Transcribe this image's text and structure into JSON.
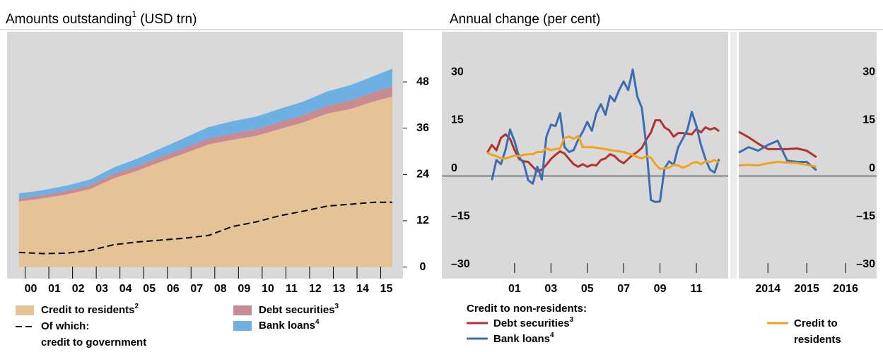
{
  "chart_data": [
    {
      "type": "area",
      "title": "Amounts outstanding",
      "title_note": "1",
      "title_suffix": "(USD trn)",
      "x": [
        2000,
        2001,
        2002,
        2003,
        2004,
        2005,
        2006,
        2007,
        2008,
        2009,
        2010,
        2011,
        2012,
        2013,
        2014,
        2015,
        2015.75
      ],
      "series": [
        {
          "name": "Credit to residents",
          "note": "2",
          "color": "#e6c396",
          "stacked": true,
          "values": [
            17,
            17.8,
            18.8,
            20.2,
            23,
            25,
            27.3,
            29.5,
            31.8,
            33,
            34,
            35.8,
            37.5,
            39.8,
            41,
            43,
            44.2
          ]
        },
        {
          "name": "Debt securities",
          "note": "3",
          "color": "#c98a92",
          "stacked": true,
          "values": [
            0.8,
            0.8,
            0.9,
            1.0,
            1.1,
            1.2,
            1.3,
            1.4,
            1.5,
            1.6,
            1.7,
            1.8,
            1.9,
            2.0,
            2.2,
            2.4,
            2.6
          ]
        },
        {
          "name": "Bank loans",
          "note": "4",
          "color": "#6cb0e4",
          "stacked": true,
          "values": [
            1.3,
            1.3,
            1.4,
            1.5,
            1.7,
            1.9,
            2.2,
            2.6,
            3.0,
            3.2,
            3.3,
            3.4,
            3.5,
            3.7,
            4.0,
            4.2,
            4.6
          ]
        },
        {
          "name_lines": [
            "Of which:",
            "credit to government"
          ],
          "color": "#000000",
          "stacked": false,
          "dashed": true,
          "values": [
            3.8,
            3.5,
            3.6,
            4.3,
            5.8,
            6.5,
            7.0,
            7.5,
            8.2,
            10.5,
            11.7,
            13.3,
            14.5,
            15.8,
            16.3,
            16.8,
            16.8
          ]
        }
      ],
      "xlim": [
        1999.5,
        2016.2
      ],
      "xticks": [
        {
          "value": 2000.5,
          "label": "00"
        },
        {
          "value": 2001.5,
          "label": "01"
        },
        {
          "value": 2002.5,
          "label": "02"
        },
        {
          "value": 2003.5,
          "label": "03"
        },
        {
          "value": 2004.5,
          "label": "04"
        },
        {
          "value": 2005.5,
          "label": "05"
        },
        {
          "value": 2006.5,
          "label": "06"
        },
        {
          "value": 2007.5,
          "label": "07"
        },
        {
          "value": 2008.5,
          "label": "08"
        },
        {
          "value": 2009.5,
          "label": "09"
        },
        {
          "value": 2010.5,
          "label": "10"
        },
        {
          "value": 2011.5,
          "label": "11"
        },
        {
          "value": 2012.5,
          "label": "12"
        },
        {
          "value": 2013.5,
          "label": "13"
        },
        {
          "value": 2014.5,
          "label": "14"
        },
        {
          "value": 2015.5,
          "label": "15"
        }
      ],
      "ylim": [
        -3,
        61
      ],
      "yticks": [
        0,
        12,
        24,
        36,
        48
      ]
    },
    {
      "type": "line",
      "title": "Annual change (per cent)",
      "legend_title": "Credit to non-residents:",
      "panels": [
        {
          "xlim": [
            1997.5,
            2013.25
          ],
          "xticks": [
            {
              "value": 2001.5,
              "label": "01"
            },
            {
              "value": 2003.5,
              "label": "03"
            },
            {
              "value": 2005.5,
              "label": "05"
            },
            {
              "value": 2007.5,
              "label": "07"
            },
            {
              "value": 2009.5,
              "label": "09"
            },
            {
              "value": 2011.5,
              "label": "11"
            }
          ]
        },
        {
          "xlim": [
            2013.75,
            2017.3
          ],
          "xticks": [
            {
              "value": 2014.5,
              "label": "2014"
            },
            {
              "value": 2015.5,
              "label": "2015"
            },
            {
              "value": 2016.5,
              "label": "2016"
            }
          ]
        }
      ],
      "ylim": [
        -32,
        45
      ],
      "yticks": [
        {
          "value": -30,
          "label": "–30"
        },
        {
          "value": -15,
          "label": "–15"
        },
        0,
        15,
        30
      ],
      "zero_line": true,
      "x": [
        2000,
        2000.25,
        2000.5,
        2000.75,
        2001,
        2001.25,
        2001.5,
        2001.75,
        2002,
        2002.25,
        2002.5,
        2002.75,
        2003,
        2003.25,
        2003.5,
        2003.75,
        2004,
        2004.25,
        2004.5,
        2004.75,
        2005,
        2005.25,
        2005.5,
        2005.75,
        2006,
        2006.25,
        2006.5,
        2006.75,
        2007,
        2007.25,
        2007.5,
        2007.75,
        2008,
        2008.25,
        2008.5,
        2008.75,
        2009,
        2009.25,
        2009.5,
        2009.75,
        2010,
        2010.25,
        2010.5,
        2010.75,
        2011,
        2011.25,
        2011.5,
        2011.75,
        2012,
        2012.25,
        2012.5,
        2012.75,
        2013.75,
        2014,
        2014.25,
        2014.5,
        2014.75,
        2015,
        2015.25,
        2015.5,
        2015.75
      ],
      "series": [
        {
          "name": "Debt securities",
          "note": "3",
          "color": "#b3312e",
          "values": [
            7.3,
            9.7,
            8,
            11.9,
            13,
            11.6,
            8.1,
            5.3,
            4.6,
            4.4,
            2.9,
            1.5,
            2,
            3.5,
            5.3,
            6.6,
            7.7,
            7,
            5.3,
            3.7,
            2.9,
            3.7,
            2.9,
            3.5,
            3.3,
            5,
            5.5,
            6.8,
            6.2,
            4.8,
            4,
            5.3,
            6.6,
            7.5,
            8.8,
            11.4,
            13.6,
            17.4,
            17.4,
            15.2,
            14.3,
            12.3,
            13.4,
            13.4,
            13.2,
            13,
            14.7,
            13.6,
            15.2,
            14.5,
            15,
            14,
            13.8,
            12.1,
            10.1,
            8.4,
            8.4,
            8.4,
            8.6,
            7.9,
            5.9
          ]
        },
        {
          "name": "Bank loans",
          "note": "4",
          "color": "#3b6db4",
          "values": [
            null,
            -1.3,
            5,
            3.7,
            8.1,
            14.5,
            10.8,
            5.9,
            4,
            -1.3,
            -2.4,
            2.9,
            -1.1,
            12.3,
            16,
            15.6,
            19.6,
            9,
            7.5,
            8.1,
            11.4,
            13.8,
            16.9,
            14.1,
            19.6,
            22.4,
            19.1,
            25,
            23.3,
            26.8,
            29.5,
            26.8,
            33.2,
            24.8,
            21.3,
            9.2,
            -7.5,
            -8.1,
            -7.9,
            2.4,
            4.6,
            3.5,
            9,
            11.6,
            14.3,
            20,
            15.6,
            9.7,
            5.3,
            2,
            1.1,
            5.3,
            7.3,
            9,
            7.9,
            9.7,
            11,
            4.8,
            4.4,
            4.4,
            1.8
          ]
        },
        {
          "name_lines": [
            "Credit to",
            "residents"
          ],
          "color": "#f0a21e",
          "values": [
            7.3,
            6.6,
            6.2,
            5.5,
            5.5,
            5.9,
            6.4,
            6.2,
            6.6,
            6.8,
            6.8,
            7.5,
            7.5,
            8.6,
            8.1,
            8.4,
            8.6,
            11.9,
            12.3,
            11.6,
            12.5,
            9,
            9,
            9,
            8.8,
            8.6,
            8.4,
            8.1,
            7.9,
            7.7,
            7.5,
            7,
            6.6,
            5.9,
            5.5,
            6.2,
            5.7,
            3.7,
            2.2,
            2.4,
            2.6,
            3.5,
            3.3,
            2.6,
            3.1,
            4,
            4.4,
            3.7,
            4.6,
            4.4,
            5,
            4.2,
            3.3,
            3.5,
            3.3,
            4,
            4.4,
            4.2,
            4,
            3.5,
            2.9
          ]
        }
      ]
    }
  ]
}
